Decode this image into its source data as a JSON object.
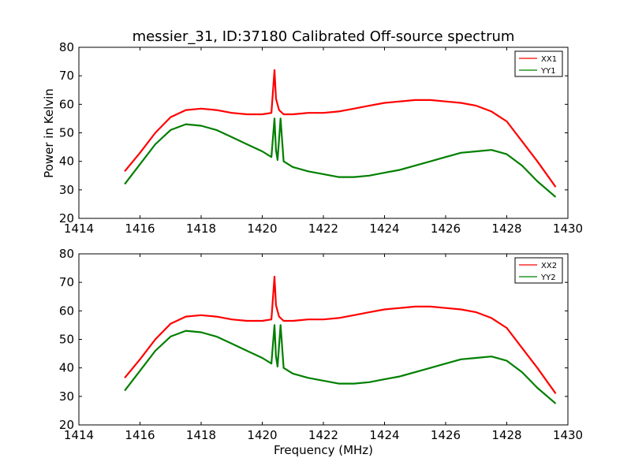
{
  "chart_data": {
    "title": "messier_31, ID:37180 Calibrated Off-source spectrum",
    "xlabel": "Frequency (MHz)",
    "ylabel": "Power in Kelvin",
    "colors": {
      "red": "#ff0000",
      "green": "#007f00"
    },
    "panels": [
      {
        "type": "line",
        "xlim": [
          1414,
          1430
        ],
        "ylim": [
          20,
          80
        ],
        "xticks": [
          "1414",
          "1416",
          "1418",
          "1420",
          "1422",
          "1424",
          "1426",
          "1428",
          "1430"
        ],
        "yticks": [
          "20",
          "30",
          "40",
          "50",
          "60",
          "70",
          "80"
        ],
        "legend_position": "top-right",
        "series": [
          {
            "name": "XX1",
            "color": "#ff0000",
            "x": [
              1415.5,
              1416.0,
              1416.5,
              1417.0,
              1417.5,
              1418.0,
              1418.5,
              1419.0,
              1419.5,
              1420.0,
              1420.3,
              1420.4,
              1420.45,
              1420.55,
              1420.7,
              1421.0,
              1421.5,
              1422.0,
              1422.5,
              1423.0,
              1423.5,
              1424.0,
              1424.5,
              1425.0,
              1425.5,
              1426.0,
              1426.5,
              1427.0,
              1427.5,
              1428.0,
              1428.5,
              1429.0,
              1429.6
            ],
            "y": [
              36.5,
              43.0,
              50.0,
              55.5,
              58.0,
              58.5,
              58.0,
              57.0,
              56.5,
              56.5,
              57.0,
              72.0,
              62.0,
              58.0,
              56.5,
              56.5,
              57.0,
              57.0,
              57.5,
              58.5,
              59.5,
              60.5,
              61.0,
              61.5,
              61.5,
              61.0,
              60.5,
              59.5,
              57.5,
              54.0,
              47.0,
              40.0,
              31.0
            ]
          },
          {
            "name": "YY1",
            "color": "#007f00",
            "x": [
              1415.5,
              1416.0,
              1416.5,
              1417.0,
              1417.5,
              1418.0,
              1418.5,
              1419.0,
              1419.5,
              1420.0,
              1420.3,
              1420.4,
              1420.45,
              1420.5,
              1420.6,
              1420.7,
              1421.0,
              1421.5,
              1422.0,
              1422.5,
              1423.0,
              1423.5,
              1424.0,
              1424.5,
              1425.0,
              1425.5,
              1426.0,
              1426.5,
              1427.0,
              1427.5,
              1428.0,
              1428.5,
              1429.0,
              1429.6
            ],
            "y": [
              32.0,
              39.0,
              46.0,
              51.0,
              53.0,
              52.5,
              51.0,
              48.5,
              46.0,
              43.5,
              41.5,
              55.0,
              44.0,
              40.5,
              55.0,
              40.0,
              38.0,
              36.5,
              35.5,
              34.5,
              34.5,
              35.0,
              36.0,
              37.0,
              38.5,
              40.0,
              41.5,
              43.0,
              43.5,
              44.0,
              42.5,
              38.5,
              33.0,
              27.5
            ]
          }
        ]
      },
      {
        "type": "line",
        "xlim": [
          1414,
          1430
        ],
        "ylim": [
          20,
          80
        ],
        "xticks": [
          "1414",
          "1416",
          "1418",
          "1420",
          "1422",
          "1424",
          "1426",
          "1428",
          "1430"
        ],
        "yticks": [
          "20",
          "30",
          "40",
          "50",
          "60",
          "70",
          "80"
        ],
        "legend_position": "top-right",
        "series": [
          {
            "name": "XX2",
            "color": "#ff0000",
            "x": [
              1415.5,
              1416.0,
              1416.5,
              1417.0,
              1417.5,
              1418.0,
              1418.5,
              1419.0,
              1419.5,
              1420.0,
              1420.3,
              1420.4,
              1420.45,
              1420.55,
              1420.7,
              1421.0,
              1421.5,
              1422.0,
              1422.5,
              1423.0,
              1423.5,
              1424.0,
              1424.5,
              1425.0,
              1425.5,
              1426.0,
              1426.5,
              1427.0,
              1427.5,
              1428.0,
              1428.5,
              1429.0,
              1429.6
            ],
            "y": [
              36.5,
              43.0,
              50.0,
              55.5,
              58.0,
              58.5,
              58.0,
              57.0,
              56.5,
              56.5,
              57.0,
              72.0,
              62.0,
              58.0,
              56.5,
              56.5,
              57.0,
              57.0,
              57.5,
              58.5,
              59.5,
              60.5,
              61.0,
              61.5,
              61.5,
              61.0,
              60.5,
              59.5,
              57.5,
              54.0,
              47.0,
              40.0,
              31.0
            ]
          },
          {
            "name": "YY2",
            "color": "#007f00",
            "x": [
              1415.5,
              1416.0,
              1416.5,
              1417.0,
              1417.5,
              1418.0,
              1418.5,
              1419.0,
              1419.5,
              1420.0,
              1420.3,
              1420.4,
              1420.45,
              1420.5,
              1420.6,
              1420.7,
              1421.0,
              1421.5,
              1422.0,
              1422.5,
              1423.0,
              1423.5,
              1424.0,
              1424.5,
              1425.0,
              1425.5,
              1426.0,
              1426.5,
              1427.0,
              1427.5,
              1428.0,
              1428.5,
              1429.0,
              1429.6
            ],
            "y": [
              32.0,
              39.0,
              46.0,
              51.0,
              53.0,
              52.5,
              51.0,
              48.5,
              46.0,
              43.5,
              41.5,
              55.0,
              44.0,
              40.5,
              55.0,
              40.0,
              38.0,
              36.5,
              35.5,
              34.5,
              34.5,
              35.0,
              36.0,
              37.0,
              38.5,
              40.0,
              41.5,
              43.0,
              43.5,
              44.0,
              42.5,
              38.5,
              33.0,
              27.5
            ]
          }
        ]
      }
    ]
  }
}
